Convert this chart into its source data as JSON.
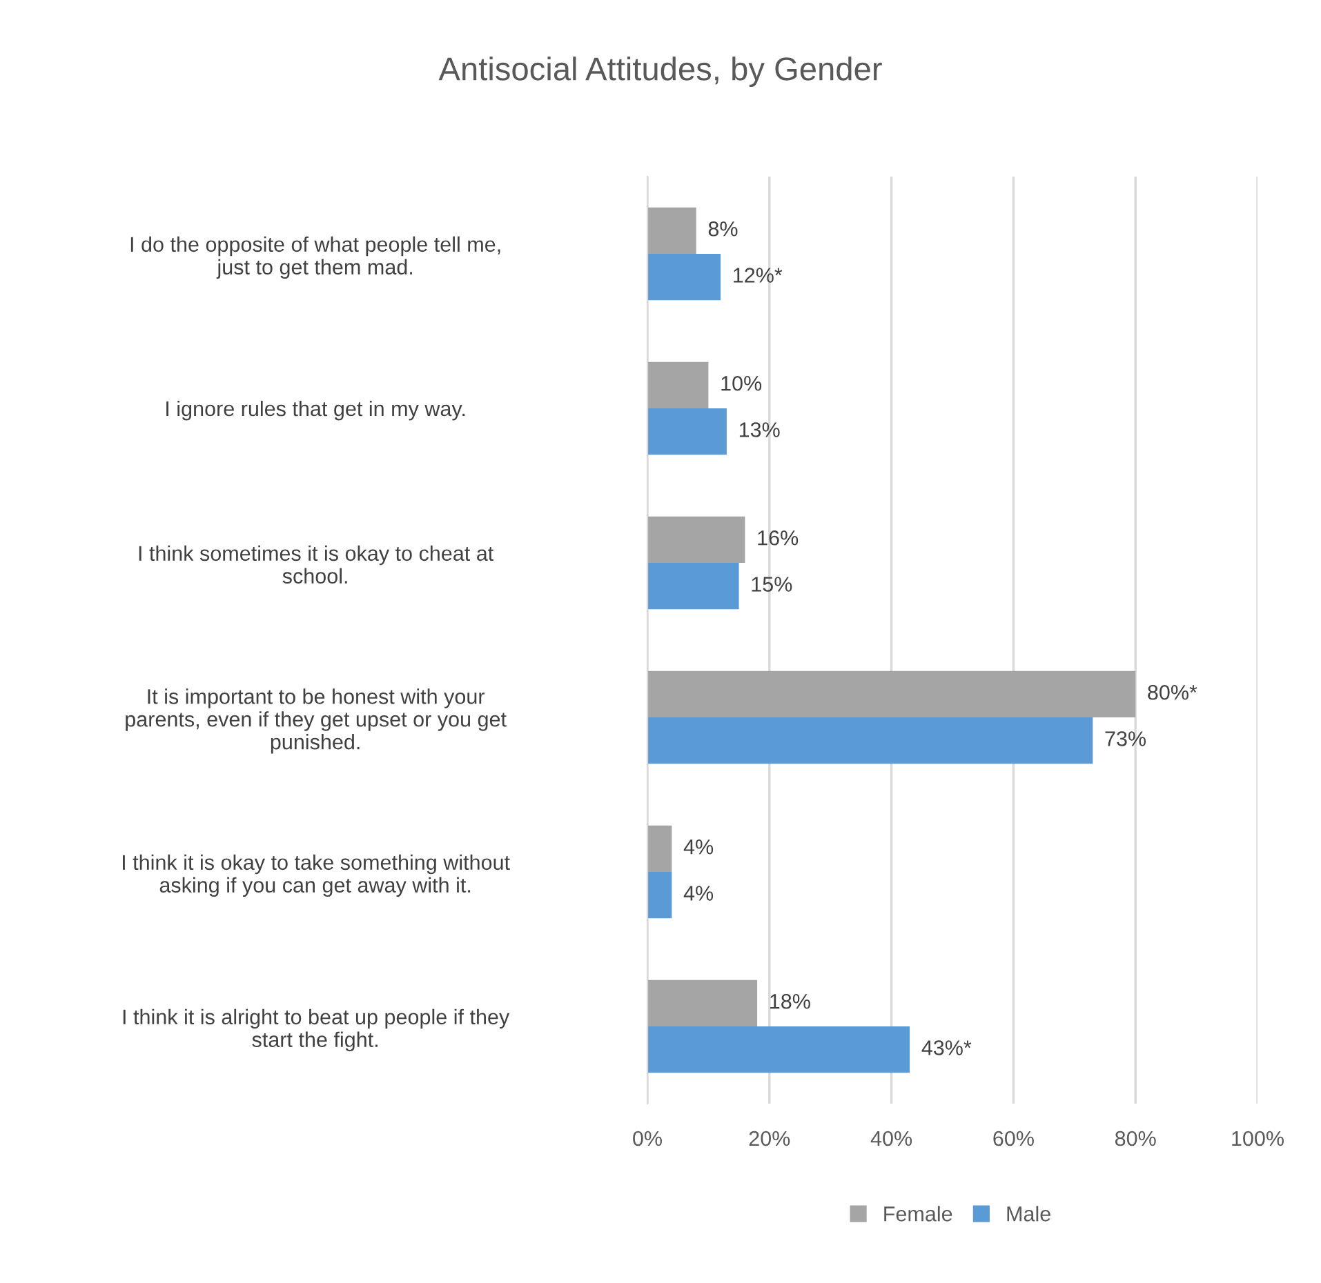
{
  "chart_data": {
    "type": "bar",
    "orientation": "horizontal",
    "title": "Antisocial Attitudes, by Gender",
    "categories": [
      "I do the opposite of what people tell me,\njust to get them mad.",
      "I ignore rules that get in my way.",
      "I think sometimes it is okay to cheat at\nschool.",
      "It is important to be honest with your\nparents, even if they get upset or you get\npunished.",
      "I think it is okay to take something without\nasking if you can get away with it.",
      "I think it is alright to beat up people if they\nstart the fight."
    ],
    "series": [
      {
        "name": "Female",
        "color": "#a5a5a5",
        "values": [
          8,
          10,
          16,
          80,
          4,
          18
        ],
        "value_labels": [
          "8%",
          "10%",
          "16%",
          "80%*",
          "4%",
          "18%"
        ]
      },
      {
        "name": "Male",
        "color": "#5b9bd5",
        "values": [
          12,
          13,
          15,
          73,
          4,
          43
        ],
        "value_labels": [
          "12%*",
          "13%",
          "15%",
          "73%",
          "4%",
          "43%*"
        ]
      }
    ],
    "xlim": [
      0,
      100
    ],
    "xticks": [
      {
        "value": 0,
        "label": "0%"
      },
      {
        "value": 20,
        "label": "20%"
      },
      {
        "value": 40,
        "label": "40%"
      },
      {
        "value": 60,
        "label": "60%"
      },
      {
        "value": 80,
        "label": "80%"
      },
      {
        "value": 100,
        "label": "100%"
      }
    ],
    "grid": "x",
    "legend": "bottom"
  }
}
